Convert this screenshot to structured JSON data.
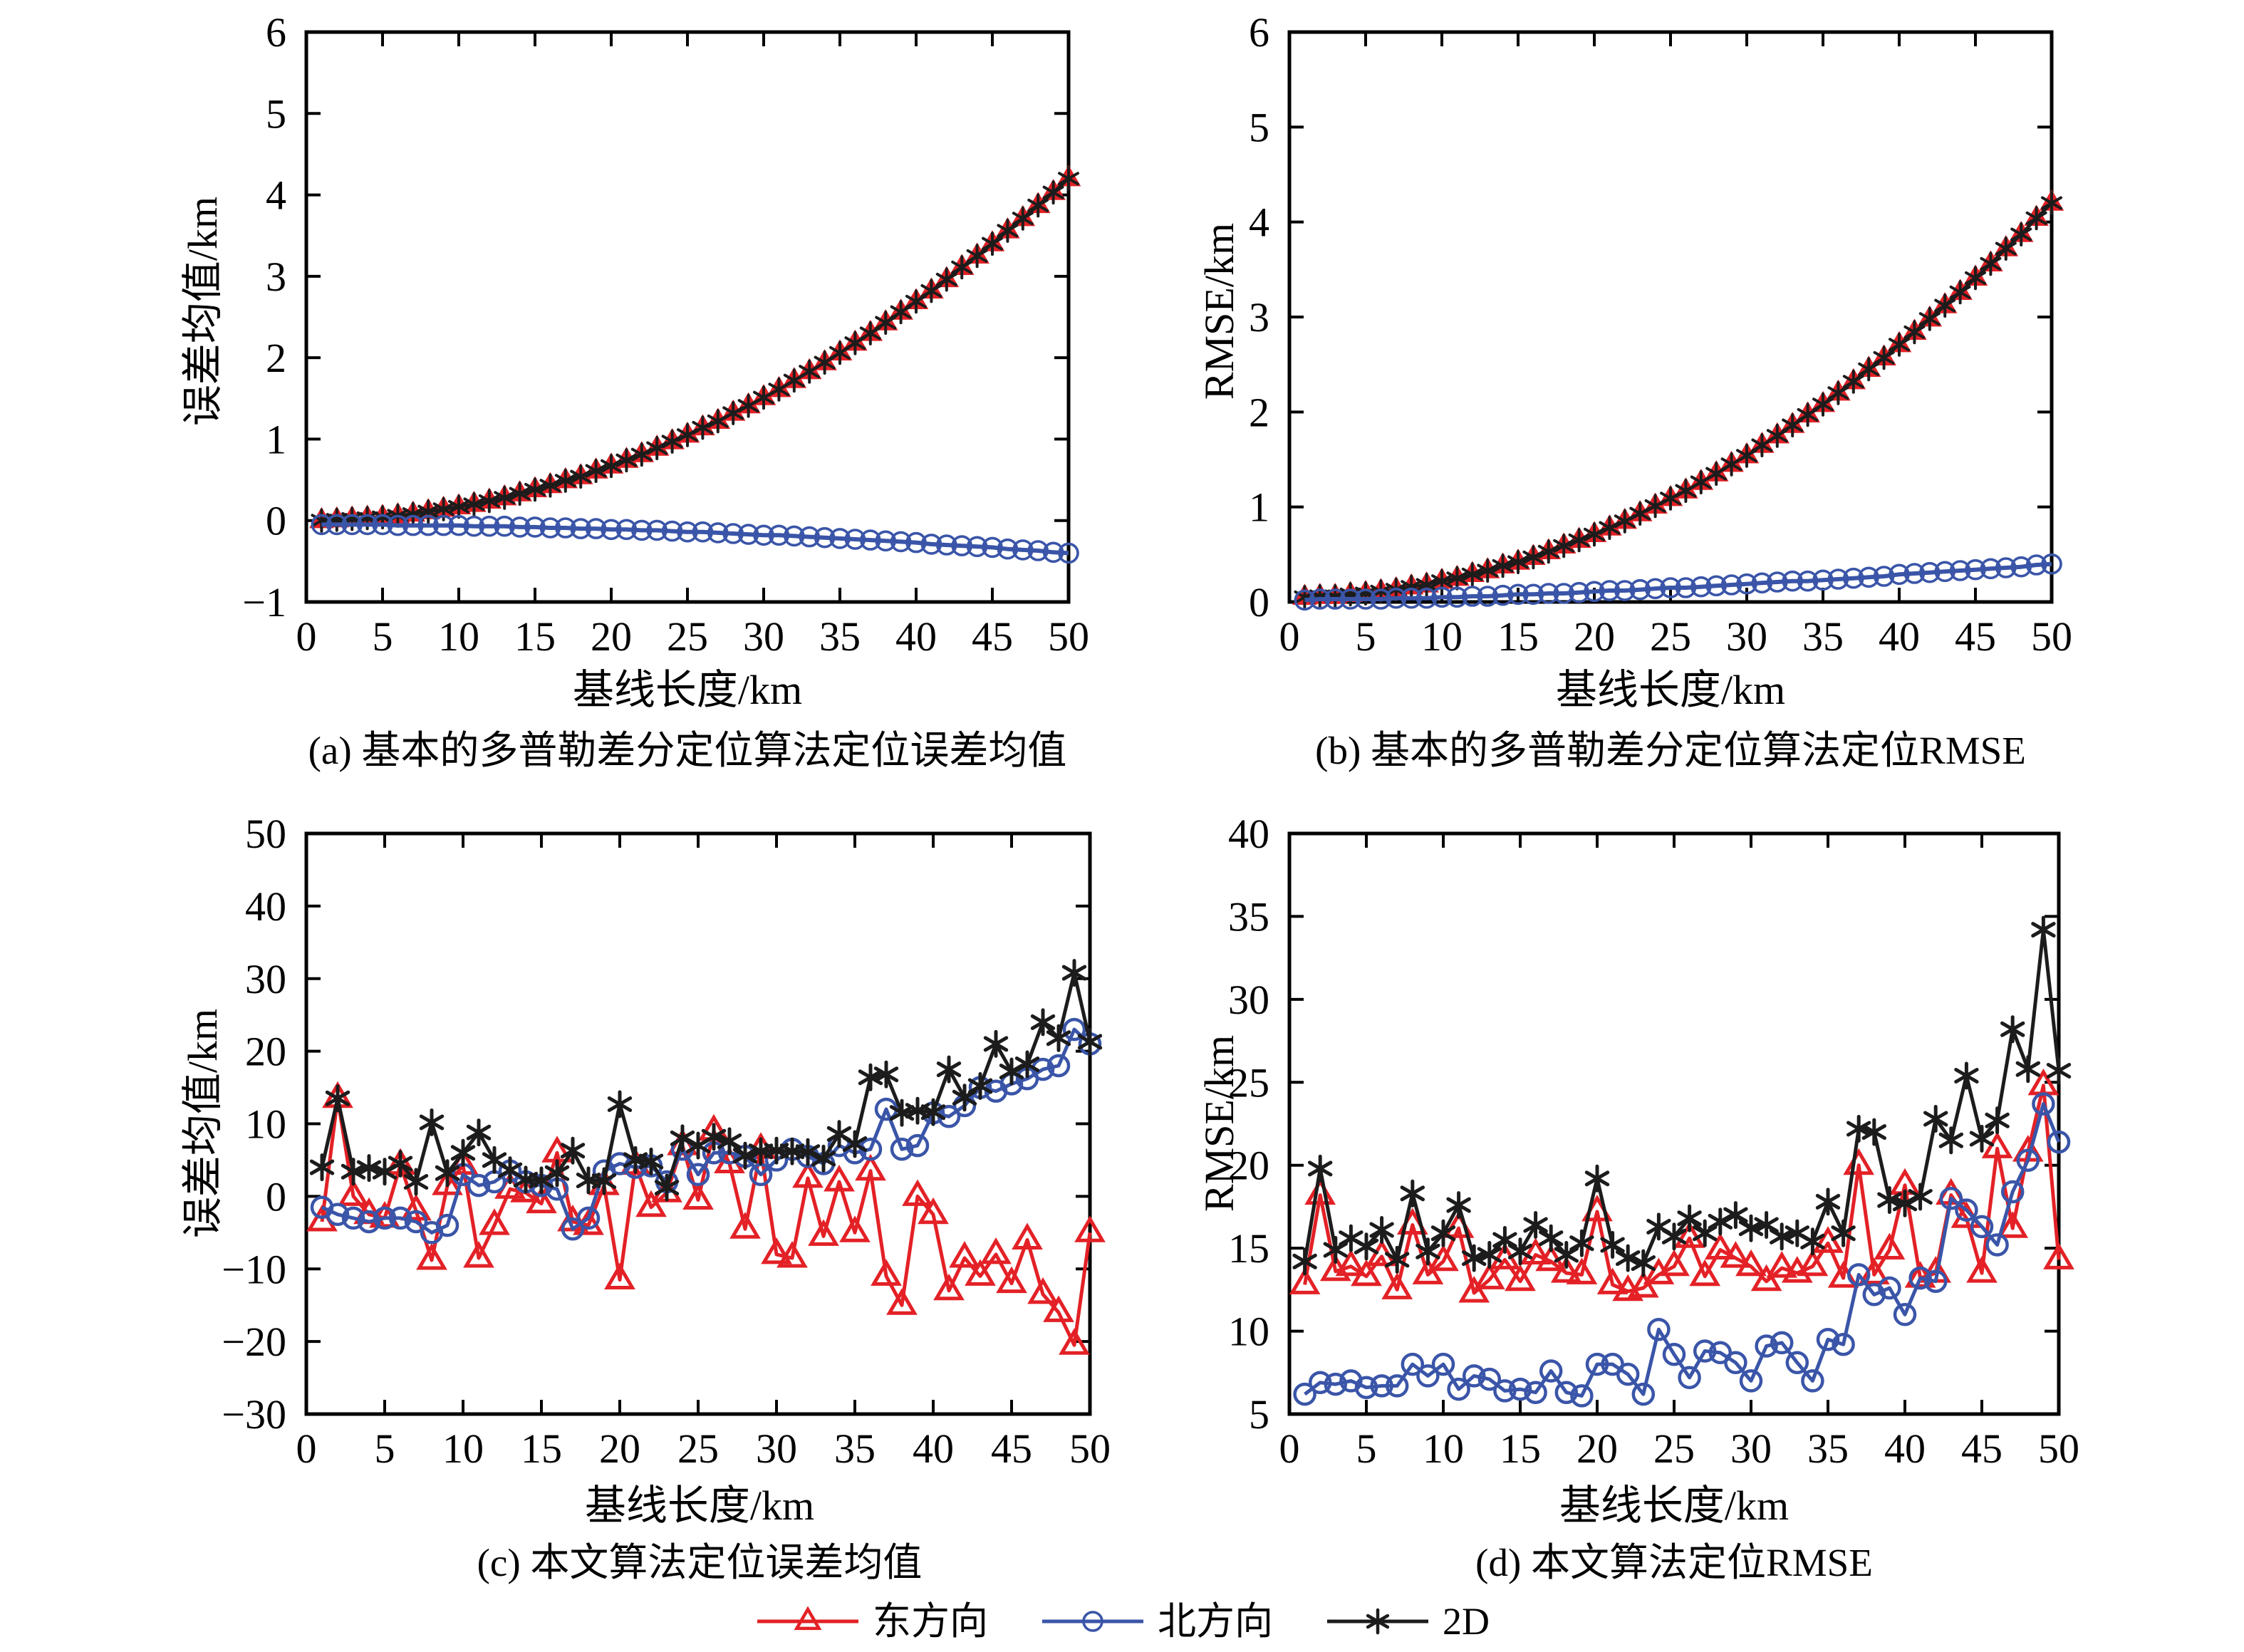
{
  "page": {
    "background": "#ffffff"
  },
  "colors": {
    "east": "#e32126",
    "north": "#3a55a8",
    "twoD": "#1c1c1c",
    "axis": "#000000"
  },
  "legend": {
    "position": "bottom-center",
    "items": [
      {
        "label": "东方向",
        "series": "east",
        "marker": "triangle"
      },
      {
        "label": "北方向",
        "series": "north",
        "marker": "circle"
      },
      {
        "label": "2D",
        "series": "twoD",
        "marker": "asterisk"
      }
    ]
  },
  "chart_data": [
    {
      "type": "line",
      "title": "(a) 基本的多普勒差分定位算法定位误差均值",
      "xlabel": "基线长度/km",
      "ylabel": "误差均值/km",
      "xlim": [
        0,
        50
      ],
      "ylim": [
        -1,
        6
      ],
      "xticks": [
        0,
        5,
        10,
        15,
        20,
        25,
        30,
        35,
        40,
        45,
        50
      ],
      "yticks": [
        -1,
        0,
        1,
        2,
        3,
        4,
        5,
        6
      ],
      "grid": false,
      "legend_position": "shared-bottom",
      "x": [
        1,
        2,
        3,
        4,
        5,
        6,
        7,
        8,
        9,
        10,
        11,
        12,
        13,
        14,
        15,
        16,
        17,
        18,
        19,
        20,
        21,
        22,
        23,
        24,
        25,
        26,
        27,
        28,
        29,
        30,
        31,
        32,
        33,
        34,
        35,
        36,
        37,
        38,
        39,
        40,
        41,
        42,
        43,
        44,
        45,
        46,
        47,
        48,
        49,
        50
      ],
      "series": [
        {
          "name": "东方向",
          "color_key": "east",
          "marker": "triangle",
          "values": [
            0.0,
            0.01,
            0.02,
            0.03,
            0.04,
            0.06,
            0.08,
            0.11,
            0.14,
            0.17,
            0.2,
            0.24,
            0.28,
            0.33,
            0.38,
            0.43,
            0.49,
            0.54,
            0.61,
            0.67,
            0.74,
            0.81,
            0.89,
            0.97,
            1.05,
            1.14,
            1.22,
            1.32,
            1.41,
            1.51,
            1.61,
            1.72,
            1.83,
            1.94,
            2.06,
            2.18,
            2.3,
            2.43,
            2.56,
            2.69,
            2.82,
            2.96,
            3.11,
            3.25,
            3.4,
            3.56,
            3.71,
            3.87,
            4.03,
            4.2
          ]
        },
        {
          "name": "北方向",
          "color_key": "north",
          "marker": "circle",
          "values": [
            -0.05,
            -0.05,
            -0.05,
            -0.05,
            -0.05,
            -0.06,
            -0.06,
            -0.06,
            -0.06,
            -0.06,
            -0.07,
            -0.07,
            -0.07,
            -0.08,
            -0.08,
            -0.09,
            -0.09,
            -0.1,
            -0.1,
            -0.11,
            -0.11,
            -0.12,
            -0.12,
            -0.13,
            -0.14,
            -0.14,
            -0.15,
            -0.16,
            -0.17,
            -0.18,
            -0.18,
            -0.19,
            -0.2,
            -0.21,
            -0.22,
            -0.23,
            -0.24,
            -0.25,
            -0.26,
            -0.27,
            -0.29,
            -0.3,
            -0.31,
            -0.32,
            -0.33,
            -0.35,
            -0.36,
            -0.37,
            -0.39,
            -0.4
          ]
        },
        {
          "name": "2D",
          "color_key": "twoD",
          "marker": "asterisk",
          "values": [
            0.0,
            0.01,
            0.02,
            0.03,
            0.04,
            0.06,
            0.08,
            0.11,
            0.14,
            0.17,
            0.2,
            0.24,
            0.28,
            0.33,
            0.38,
            0.43,
            0.49,
            0.54,
            0.61,
            0.67,
            0.74,
            0.81,
            0.89,
            0.97,
            1.05,
            1.14,
            1.22,
            1.32,
            1.41,
            1.51,
            1.61,
            1.72,
            1.83,
            1.94,
            2.06,
            2.18,
            2.3,
            2.43,
            2.56,
            2.69,
            2.82,
            2.96,
            3.11,
            3.25,
            3.4,
            3.56,
            3.71,
            3.87,
            4.03,
            4.2
          ]
        }
      ]
    },
    {
      "type": "line",
      "title": "(b) 基本的多普勒差分定位算法定位RMSE",
      "xlabel": "基线长度/km",
      "ylabel": "RMSE/km",
      "xlim": [
        0,
        50
      ],
      "ylim": [
        0,
        6
      ],
      "xticks": [
        0,
        5,
        10,
        15,
        20,
        25,
        30,
        35,
        40,
        45,
        50
      ],
      "yticks": [
        0,
        1,
        2,
        3,
        4,
        5,
        6
      ],
      "grid": false,
      "legend_position": "shared-bottom",
      "x": [
        1,
        2,
        3,
        4,
        5,
        6,
        7,
        8,
        9,
        10,
        11,
        12,
        13,
        14,
        15,
        16,
        17,
        18,
        19,
        20,
        21,
        22,
        23,
        24,
        25,
        26,
        27,
        28,
        29,
        30,
        31,
        32,
        33,
        34,
        35,
        36,
        37,
        38,
        39,
        40,
        41,
        42,
        43,
        44,
        45,
        46,
        47,
        48,
        49,
        50
      ],
      "series": [
        {
          "name": "东方向",
          "color_key": "east",
          "marker": "triangle",
          "values": [
            0.05,
            0.06,
            0.06,
            0.08,
            0.09,
            0.11,
            0.13,
            0.16,
            0.18,
            0.22,
            0.25,
            0.29,
            0.33,
            0.38,
            0.42,
            0.47,
            0.53,
            0.59,
            0.65,
            0.71,
            0.78,
            0.85,
            0.93,
            1.01,
            1.09,
            1.17,
            1.26,
            1.35,
            1.45,
            1.54,
            1.65,
            1.75,
            1.86,
            1.97,
            2.08,
            2.2,
            2.32,
            2.45,
            2.57,
            2.71,
            2.84,
            2.98,
            3.12,
            3.26,
            3.41,
            3.56,
            3.72,
            3.87,
            4.04,
            4.2
          ]
        },
        {
          "name": "北方向",
          "color_key": "north",
          "marker": "circle",
          "values": [
            0.02,
            0.03,
            0.03,
            0.03,
            0.03,
            0.03,
            0.04,
            0.04,
            0.04,
            0.05,
            0.05,
            0.06,
            0.06,
            0.07,
            0.08,
            0.08,
            0.09,
            0.09,
            0.1,
            0.11,
            0.12,
            0.12,
            0.13,
            0.14,
            0.15,
            0.15,
            0.16,
            0.17,
            0.18,
            0.19,
            0.2,
            0.21,
            0.22,
            0.22,
            0.23,
            0.24,
            0.25,
            0.26,
            0.27,
            0.29,
            0.3,
            0.31,
            0.32,
            0.33,
            0.34,
            0.35,
            0.36,
            0.37,
            0.39,
            0.4
          ]
        },
        {
          "name": "2D",
          "color_key": "twoD",
          "marker": "asterisk",
          "values": [
            0.05,
            0.06,
            0.06,
            0.08,
            0.09,
            0.11,
            0.13,
            0.16,
            0.18,
            0.22,
            0.25,
            0.29,
            0.33,
            0.38,
            0.42,
            0.47,
            0.53,
            0.59,
            0.65,
            0.71,
            0.78,
            0.85,
            0.93,
            1.01,
            1.09,
            1.17,
            1.26,
            1.35,
            1.45,
            1.54,
            1.65,
            1.75,
            1.86,
            1.97,
            2.08,
            2.2,
            2.32,
            2.45,
            2.57,
            2.71,
            2.84,
            2.98,
            3.12,
            3.26,
            3.41,
            3.56,
            3.72,
            3.87,
            4.04,
            4.2
          ]
        }
      ]
    },
    {
      "type": "line",
      "title": "(c) 本文算法定位误差均值",
      "xlabel": "基线长度/km",
      "ylabel": "误差均值/km",
      "xlim": [
        0,
        50
      ],
      "ylim": [
        -30,
        50
      ],
      "xticks": [
        0,
        5,
        10,
        15,
        20,
        25,
        30,
        35,
        40,
        45,
        50
      ],
      "yticks": [
        -30,
        -20,
        -10,
        0,
        10,
        20,
        30,
        40,
        50
      ],
      "grid": false,
      "legend_position": "shared-bottom",
      "x": [
        1,
        2,
        3,
        4,
        5,
        6,
        7,
        8,
        9,
        10,
        11,
        12,
        13,
        14,
        15,
        16,
        17,
        18,
        19,
        20,
        21,
        22,
        23,
        24,
        25,
        26,
        27,
        28,
        29,
        30,
        31,
        32,
        33,
        34,
        35,
        36,
        37,
        38,
        39,
        40,
        41,
        42,
        43,
        44,
        45,
        46,
        47,
        48,
        49,
        50
      ],
      "series": [
        {
          "name": "东方向",
          "color_key": "east",
          "marker": "triangle",
          "values": [
            -3.5,
            13.5,
            0.0,
            -2.5,
            -3.0,
            4.3,
            -2.0,
            -8.8,
            1.5,
            4.3,
            -8.5,
            -4.0,
            1.0,
            0.5,
            -1.0,
            6.0,
            -3.5,
            -4.0,
            1.5,
            -11.5,
            4.3,
            -1.5,
            0.5,
            7.0,
            -0.5,
            9.0,
            4.5,
            -4.5,
            6.5,
            -8.0,
            -8.5,
            2.5,
            -5.5,
            2.0,
            -5.0,
            3.5,
            -11.0,
            -15.0,
            0.0,
            -2.5,
            -13.0,
            -8.5,
            -11.0,
            -8.0,
            -12.0,
            -6.0,
            -13.5,
            -16.0,
            -20.5,
            -5.0
          ]
        },
        {
          "name": "北方向",
          "color_key": "north",
          "marker": "circle",
          "values": [
            -1.5,
            -2.5,
            -3.0,
            -3.5,
            -3.0,
            -3.0,
            -3.5,
            -5.0,
            -4.0,
            3.0,
            1.5,
            2.0,
            3.5,
            2.0,
            1.5,
            1.0,
            -4.5,
            -3.0,
            3.5,
            4.5,
            4.0,
            4.2,
            2.0,
            6.5,
            3.0,
            6.0,
            6.0,
            5.5,
            3.0,
            5.0,
            6.5,
            5.5,
            4.5,
            7.0,
            6.0,
            6.5,
            12.0,
            6.5,
            7.0,
            11.5,
            11.0,
            12.5,
            15.0,
            14.5,
            15.5,
            16.2,
            17.5,
            18.0,
            23.0,
            21.0
          ]
        },
        {
          "name": "2D",
          "color_key": "twoD",
          "marker": "asterisk",
          "values": [
            4.0,
            13.5,
            3.4,
            3.9,
            3.4,
            4.5,
            2.0,
            10.2,
            3.2,
            6.0,
            8.8,
            5.0,
            3.6,
            2.3,
            2.2,
            3.2,
            6.3,
            2.2,
            2.1,
            12.7,
            5.0,
            4.8,
            1.2,
            8.0,
            7.0,
            8.2,
            7.6,
            5.6,
            6.2,
            6.3,
            6.2,
            6.1,
            5.2,
            8.6,
            7.2,
            16.4,
            16.8,
            11.5,
            11.8,
            11.6,
            17.5,
            13.6,
            15.2,
            21.0,
            17.2,
            18.2,
            24.0,
            21.8,
            30.8,
            21.3
          ]
        }
      ]
    },
    {
      "type": "line",
      "title": "(d) 本文算法定位RMSE",
      "xlabel": "基线长度/km",
      "ylabel": "RMSE/km",
      "xlim": [
        0,
        50
      ],
      "ylim": [
        5,
        40
      ],
      "xticks": [
        0,
        5,
        10,
        15,
        20,
        25,
        30,
        35,
        40,
        45,
        50
      ],
      "yticks": [
        5,
        10,
        15,
        20,
        25,
        30,
        35,
        40
      ],
      "grid": false,
      "legend_position": "shared-bottom",
      "x": [
        1,
        2,
        3,
        4,
        5,
        6,
        7,
        8,
        9,
        10,
        11,
        12,
        13,
        14,
        15,
        16,
        17,
        18,
        19,
        20,
        21,
        22,
        23,
        24,
        25,
        26,
        27,
        28,
        29,
        30,
        31,
        32,
        33,
        34,
        35,
        36,
        37,
        38,
        39,
        40,
        41,
        42,
        43,
        44,
        45,
        46,
        47,
        48,
        49,
        50
      ],
      "series": [
        {
          "name": "东方向",
          "color_key": "east",
          "marker": "triangle",
          "values": [
            12.8,
            18.2,
            13.6,
            13.9,
            13.3,
            14.5,
            12.5,
            16.4,
            13.4,
            14.2,
            16.2,
            12.3,
            13.1,
            14.3,
            13.0,
            14.6,
            14.2,
            13.5,
            13.4,
            17.2,
            12.8,
            12.4,
            12.6,
            13.4,
            13.9,
            15.6,
            13.3,
            14.9,
            14.4,
            13.9,
            13.0,
            13.8,
            13.5,
            13.9,
            15.3,
            13.2,
            20.0,
            13.4,
            14.9,
            18.8,
            13.2,
            13.5,
            18.2,
            16.8,
            13.5,
            21.0,
            16.2,
            20.8,
            24.8,
            14.3
          ]
        },
        {
          "name": "北方向",
          "color_key": "north",
          "marker": "circle",
          "values": [
            6.2,
            6.9,
            6.8,
            7.0,
            6.6,
            6.7,
            6.7,
            8.0,
            7.3,
            8.0,
            6.5,
            7.3,
            7.1,
            6.4,
            6.5,
            6.3,
            7.6,
            6.3,
            6.1,
            8.0,
            8.0,
            7.4,
            6.2,
            10.1,
            8.6,
            7.2,
            8.8,
            8.7,
            8.1,
            7.0,
            9.1,
            9.3,
            8.1,
            7.0,
            9.5,
            9.2,
            13.4,
            12.2,
            12.6,
            11.0,
            13.2,
            13.0,
            18.0,
            17.3,
            16.3,
            15.2,
            18.4,
            20.3,
            23.7,
            21.4
          ]
        },
        {
          "name": "2D",
          "color_key": "twoD",
          "marker": "asterisk",
          "values": [
            14.2,
            19.8,
            14.9,
            15.6,
            15.1,
            16.1,
            14.3,
            18.3,
            14.8,
            15.9,
            17.6,
            14.4,
            14.6,
            15.5,
            14.8,
            16.4,
            15.6,
            14.6,
            15.3,
            19.2,
            15.2,
            14.4,
            14.1,
            16.3,
            15.7,
            16.8,
            15.9,
            16.6,
            17.0,
            16.2,
            16.4,
            15.7,
            15.9,
            15.4,
            17.8,
            15.9,
            22.2,
            22.0,
            17.9,
            17.7,
            18.1,
            22.8,
            21.5,
            25.4,
            21.6,
            22.7,
            28.2,
            25.8,
            34.2,
            25.7
          ]
        }
      ]
    }
  ]
}
